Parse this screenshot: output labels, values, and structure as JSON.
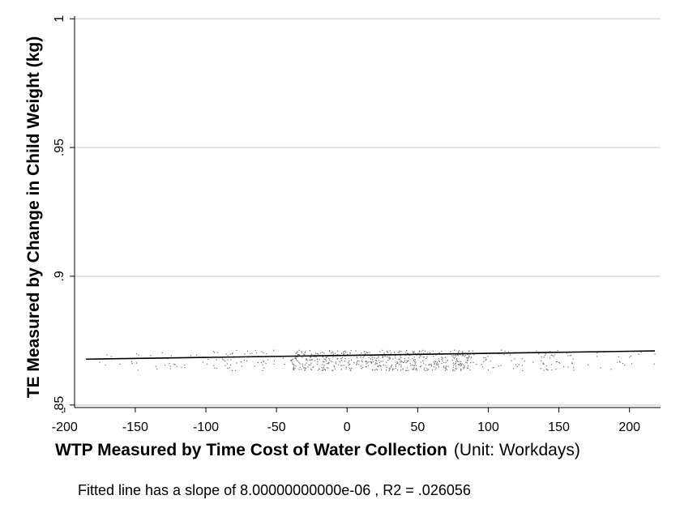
{
  "chart_data": {
    "type": "scatter",
    "title": "",
    "xlabel": "WTP Measured by Time Cost of Water Collection",
    "xlabel_unit": "(Unit: Workdays)",
    "ylabel": "TE Measured by Change in Child Weight (kg)",
    "xlim": [
      -193,
      222
    ],
    "ylim": [
      0.849,
      1.001
    ],
    "x_ticks": [
      -200,
      -150,
      -100,
      -50,
      0,
      50,
      100,
      150,
      200
    ],
    "x_tick_labels": [
      "-200",
      "-150",
      "-100",
      "-50",
      "0",
      "50",
      "100",
      "150",
      "200"
    ],
    "y_ticks": [
      0.85,
      0.9,
      0.95,
      1
    ],
    "y_tick_labels": [
      ".85",
      ".9",
      ".95",
      "1"
    ],
    "grid": "horizontal",
    "point_color": "#6b6b6b",
    "line_color": "#000000",
    "scatter_bands": [
      {
        "x_range": [
          -185,
          -100
        ],
        "y_range": [
          0.8635,
          0.8705
        ],
        "density": "sparse"
      },
      {
        "x_range": [
          -100,
          -40
        ],
        "y_range": [
          0.8635,
          0.8715
        ],
        "density": "medium"
      },
      {
        "x_range": [
          -40,
          90
        ],
        "y_range": [
          0.8635,
          0.8715
        ],
        "density": "dense"
      },
      {
        "x_range": [
          90,
          160
        ],
        "y_range": [
          0.8635,
          0.8715
        ],
        "density": "medium"
      },
      {
        "x_range": [
          160,
          218
        ],
        "y_range": [
          0.8635,
          0.8715
        ],
        "density": "sparse"
      }
    ],
    "fitted_line": {
      "x": [
        -185,
        218
      ],
      "y": [
        0.8678,
        0.871
      ]
    },
    "note": "Fitted line has a slope of 8.00000000000e-06 , R2 = .026056"
  }
}
